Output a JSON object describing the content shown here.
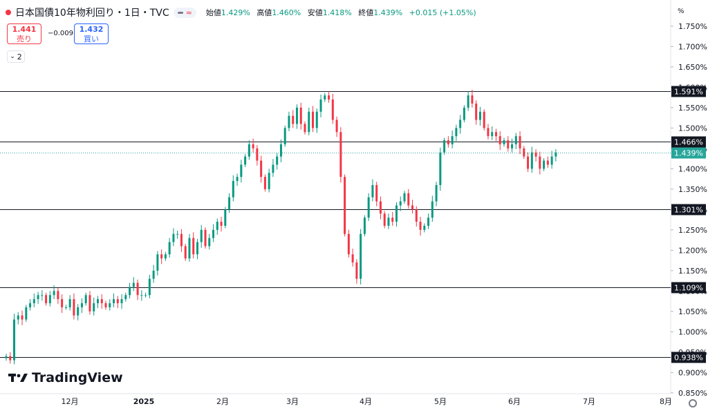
{
  "header": {
    "symbol": "日本国債10年物利回り・1日・TVC",
    "pill_icon": "approx-icon",
    "pill_text": "≈",
    "ohlc": [
      {
        "label": "始値",
        "value": "1.429%"
      },
      {
        "label": "高値",
        "value": "1.460%"
      },
      {
        "label": "安値",
        "value": "1.418%"
      },
      {
        "label": "終値",
        "value": "1.439%"
      }
    ],
    "change": "+0.015 (+1.05%)"
  },
  "trade": {
    "sell_price": "1.441",
    "sell_label": "売り",
    "spread": "−0.009",
    "buy_price": "1.432",
    "buy_label": "買い"
  },
  "collapse_count": "2",
  "logo_text": "TradingView",
  "colors": {
    "up": "#089981",
    "down": "#f23645",
    "line": "#131722",
    "current": "#26a69a"
  },
  "chart_data": {
    "type": "candlestick",
    "y_unit": "%",
    "ylim": [
      0.845,
      1.765
    ],
    "y_ticks": [
      "1.750%",
      "1.700%",
      "1.650%",
      "1.600%",
      "1.550%",
      "1.500%",
      "1.450%",
      "1.400%",
      "1.350%",
      "1.300%",
      "1.250%",
      "1.200%",
      "1.150%",
      "1.100%",
      "1.050%",
      "1.000%",
      "0.950%",
      "0.900%",
      "0.850%"
    ],
    "x_ticks": [
      "12月",
      "2025",
      "2月",
      "3月",
      "4月",
      "5月",
      "6月",
      "7月",
      "8月"
    ],
    "horizontal_lines": [
      1.591,
      1.466,
      1.301,
      1.109,
      0.938
    ],
    "line_labels": [
      "1.591%",
      "1.466%",
      "1.301%",
      "1.109%",
      "0.938%"
    ],
    "current_price": 1.439,
    "current_label": "1.439%",
    "closes": [
      0.94,
      0.93,
      1.03,
      1.04,
      1.03,
      1.06,
      1.07,
      1.08,
      1.09,
      1.09,
      1.07,
      1.09,
      1.1,
      1.08,
      1.06,
      1.06,
      1.08,
      1.04,
      1.06,
      1.07,
      1.09,
      1.05,
      1.07,
      1.08,
      1.07,
      1.06,
      1.07,
      1.08,
      1.07,
      1.08,
      1.09,
      1.11,
      1.12,
      1.09,
      1.09,
      1.09,
      1.13,
      1.15,
      1.19,
      1.18,
      1.19,
      1.22,
      1.24,
      1.24,
      1.21,
      1.18,
      1.23,
      1.19,
      1.22,
      1.25,
      1.21,
      1.23,
      1.25,
      1.27,
      1.26,
      1.3,
      1.33,
      1.37,
      1.38,
      1.41,
      1.43,
      1.46,
      1.45,
      1.42,
      1.38,
      1.35,
      1.39,
      1.41,
      1.43,
      1.46,
      1.5,
      1.53,
      1.51,
      1.55,
      1.51,
      1.49,
      1.54,
      1.5,
      1.54,
      1.57,
      1.58,
      1.57,
      1.52,
      1.49,
      1.38,
      1.24,
      1.19,
      1.17,
      1.13,
      1.24,
      1.28,
      1.33,
      1.36,
      1.32,
      1.29,
      1.26,
      1.28,
      1.27,
      1.31,
      1.32,
      1.34,
      1.31,
      1.3,
      1.27,
      1.25,
      1.26,
      1.28,
      1.32,
      1.36,
      1.44,
      1.47,
      1.46,
      1.48,
      1.5,
      1.52,
      1.55,
      1.58,
      1.56,
      1.52,
      1.54,
      1.5,
      1.48,
      1.49,
      1.48,
      1.46,
      1.47,
      1.45,
      1.46,
      1.48,
      1.45,
      1.43,
      1.4,
      1.44,
      1.43,
      1.4,
      1.42,
      1.41,
      1.43,
      1.44
    ]
  }
}
